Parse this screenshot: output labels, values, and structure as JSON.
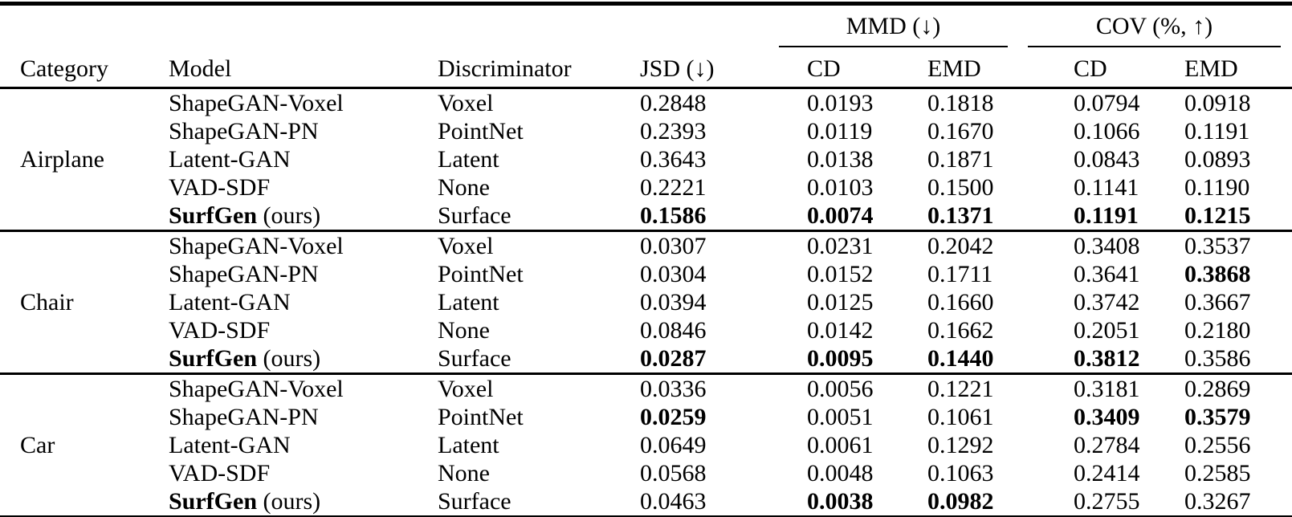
{
  "table": {
    "header": {
      "category": "Category",
      "model": "Model",
      "discriminator": "Discriminator",
      "jsd": "JSD (↓)",
      "mmd_group": "MMD (↓)",
      "cov_group": "COV (%, ↑)",
      "cd": "CD",
      "emd": "EMD"
    },
    "value_columns": [
      "jsd",
      "mmd_cd",
      "mmd_emd",
      "cov_cd",
      "cov_emd"
    ],
    "sections": [
      {
        "category": "Airplane",
        "rows": [
          {
            "model": "ShapeGAN-Voxel",
            "model_suffix": "",
            "model_bold": false,
            "discriminator": "Voxel",
            "values": [
              "0.2848",
              "0.0193",
              "0.1818",
              "0.0794",
              "0.0918"
            ],
            "bold": [
              false,
              false,
              false,
              false,
              false
            ]
          },
          {
            "model": "ShapeGAN-PN",
            "model_suffix": "",
            "model_bold": false,
            "discriminator": "PointNet",
            "values": [
              "0.2393",
              "0.0119",
              "0.1670",
              "0.1066",
              "0.1191"
            ],
            "bold": [
              false,
              false,
              false,
              false,
              false
            ]
          },
          {
            "model": "Latent-GAN",
            "model_suffix": "",
            "model_bold": false,
            "discriminator": "Latent",
            "values": [
              "0.3643",
              "0.0138",
              "0.1871",
              "0.0843",
              "0.0893"
            ],
            "bold": [
              false,
              false,
              false,
              false,
              false
            ]
          },
          {
            "model": "VAD-SDF",
            "model_suffix": "",
            "model_bold": false,
            "discriminator": "None",
            "values": [
              "0.2221",
              "0.0103",
              "0.1500",
              "0.1141",
              "0.1190"
            ],
            "bold": [
              false,
              false,
              false,
              false,
              false
            ]
          },
          {
            "model": "SurfGen",
            "model_suffix": " (ours)",
            "model_bold": true,
            "discriminator": "Surface",
            "values": [
              "0.1586",
              "0.0074",
              "0.1371",
              "0.1191",
              "0.1215"
            ],
            "bold": [
              true,
              true,
              true,
              true,
              true
            ]
          }
        ]
      },
      {
        "category": "Chair",
        "rows": [
          {
            "model": "ShapeGAN-Voxel",
            "model_suffix": "",
            "model_bold": false,
            "discriminator": "Voxel",
            "values": [
              "0.0307",
              "0.0231",
              "0.2042",
              "0.3408",
              "0.3537"
            ],
            "bold": [
              false,
              false,
              false,
              false,
              false
            ]
          },
          {
            "model": "ShapeGAN-PN",
            "model_suffix": "",
            "model_bold": false,
            "discriminator": "PointNet",
            "values": [
              "0.0304",
              "0.0152",
              "0.1711",
              "0.3641",
              "0.3868"
            ],
            "bold": [
              false,
              false,
              false,
              false,
              true
            ]
          },
          {
            "model": "Latent-GAN",
            "model_suffix": "",
            "model_bold": false,
            "discriminator": "Latent",
            "values": [
              "0.0394",
              "0.0125",
              "0.1660",
              "0.3742",
              "0.3667"
            ],
            "bold": [
              false,
              false,
              false,
              false,
              false
            ]
          },
          {
            "model": "VAD-SDF",
            "model_suffix": "",
            "model_bold": false,
            "discriminator": "None",
            "values": [
              "0.0846",
              "0.0142",
              "0.1662",
              "0.2051",
              "0.2180"
            ],
            "bold": [
              false,
              false,
              false,
              false,
              false
            ]
          },
          {
            "model": "SurfGen",
            "model_suffix": " (ours)",
            "model_bold": true,
            "discriminator": "Surface",
            "values": [
              "0.0287",
              "0.0095",
              "0.1440",
              "0.3812",
              "0.3586"
            ],
            "bold": [
              true,
              true,
              true,
              true,
              false
            ]
          }
        ]
      },
      {
        "category": "Car",
        "rows": [
          {
            "model": "ShapeGAN-Voxel",
            "model_suffix": "",
            "model_bold": false,
            "discriminator": "Voxel",
            "values": [
              "0.0336",
              "0.0056",
              "0.1221",
              "0.3181",
              "0.2869"
            ],
            "bold": [
              false,
              false,
              false,
              false,
              false
            ]
          },
          {
            "model": "ShapeGAN-PN",
            "model_suffix": "",
            "model_bold": false,
            "discriminator": "PointNet",
            "values": [
              "0.0259",
              "0.0051",
              "0.1061",
              "0.3409",
              "0.3579"
            ],
            "bold": [
              true,
              false,
              false,
              true,
              true
            ]
          },
          {
            "model": "Latent-GAN",
            "model_suffix": "",
            "model_bold": false,
            "discriminator": "Latent",
            "values": [
              "0.0649",
              "0.0061",
              "0.1292",
              "0.2784",
              "0.2556"
            ],
            "bold": [
              false,
              false,
              false,
              false,
              false
            ]
          },
          {
            "model": "VAD-SDF",
            "model_suffix": "",
            "model_bold": false,
            "discriminator": "None",
            "values": [
              "0.0568",
              "0.0048",
              "0.1063",
              "0.2414",
              "0.2585"
            ],
            "bold": [
              false,
              false,
              false,
              false,
              false
            ]
          },
          {
            "model": "SurfGen",
            "model_suffix": " (ours)",
            "model_bold": true,
            "discriminator": "Surface",
            "values": [
              "0.0463",
              "0.0038",
              "0.0982",
              "0.2755",
              "0.3267"
            ],
            "bold": [
              false,
              true,
              true,
              false,
              false
            ]
          }
        ]
      }
    ]
  }
}
